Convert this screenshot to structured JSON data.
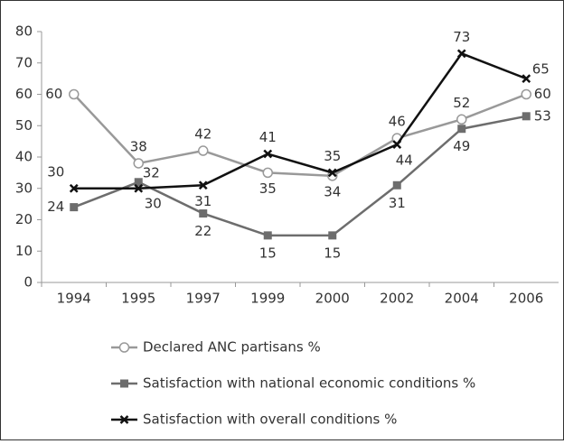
{
  "chart_data": {
    "type": "line",
    "categories": [
      "1994",
      "1995",
      "1997",
      "1999",
      "2000",
      "2002",
      "2004",
      "2006"
    ],
    "series": [
      {
        "name": "Declared ANC partisans %",
        "color": "#999999",
        "marker": "circle",
        "values": [
          60,
          38,
          42,
          35,
          34,
          46,
          52,
          60
        ]
      },
      {
        "name": "Satisfaction with national economic conditions %",
        "color": "#6d6d6d",
        "marker": "square",
        "values": [
          24,
          32,
          22,
          15,
          15,
          31,
          49,
          53
        ]
      },
      {
        "name": "Satisfaction with overall conditions %",
        "color": "#111111",
        "marker": "x",
        "values": [
          30,
          30,
          31,
          41,
          35,
          44,
          73,
          65
        ]
      }
    ],
    "ylim": [
      0,
      80
    ],
    "yticks": [
      0,
      10,
      20,
      30,
      40,
      50,
      60,
      70,
      80
    ],
    "grid": false,
    "data_labels": true,
    "legend": "bottom"
  }
}
